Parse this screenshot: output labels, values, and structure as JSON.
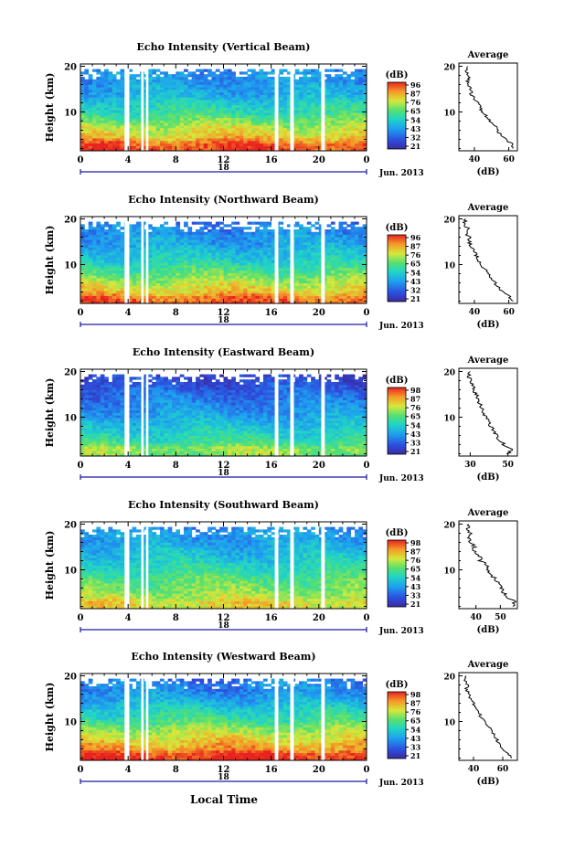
{
  "figure": {
    "xlabel": "Local Time",
    "date_label": "Jun. 2013"
  },
  "chart_data": [
    {
      "type": "heatmap",
      "title": "Echo Intensity (Vertical Beam)",
      "ylabel": "Height (km)",
      "xlabel": "Local Time",
      "x_ticks": [
        "0",
        "4",
        "8",
        "12",
        "16",
        "20",
        "0"
      ],
      "y_ticks": [
        "10",
        "20"
      ],
      "xlim": [
        0,
        24
      ],
      "ylim": [
        1.5,
        20.5
      ],
      "day_label": "18",
      "date_label": "Jun. 2013",
      "colorbar": {
        "label": "(dB)",
        "ticks": [
          "96",
          "87",
          "76",
          "65",
          "54",
          "43",
          "32",
          "21"
        ]
      },
      "gaps_hours": [
        [
          3.7,
          4.1
        ],
        [
          5.1,
          5.3
        ],
        [
          5.5,
          5.7
        ],
        [
          16.3,
          16.6
        ],
        [
          17.6,
          17.9
        ],
        [
          20.2,
          20.5
        ]
      ],
      "average": {
        "title": "Average",
        "xlabel": "(dB)",
        "x_ticks": [
          40,
          60
        ],
        "xlim": [
          31,
          65
        ],
        "heights": [
          2,
          3,
          4,
          5,
          6,
          7,
          8,
          9,
          10,
          11,
          12,
          13,
          14,
          15,
          16,
          17,
          18,
          19,
          20
        ],
        "values": [
          63,
          62,
          58,
          55,
          53,
          52,
          49,
          47,
          44,
          44,
          42,
          40,
          38,
          38,
          37,
          36,
          37,
          35,
          36
        ]
      }
    },
    {
      "type": "heatmap",
      "title": "Echo Intensity (Northward Beam)",
      "ylabel": "Height (km)",
      "xlabel": "Local Time",
      "x_ticks": [
        "0",
        "4",
        "8",
        "12",
        "16",
        "20",
        "0"
      ],
      "y_ticks": [
        "10",
        "20"
      ],
      "xlim": [
        0,
        24
      ],
      "ylim": [
        1.5,
        20.5
      ],
      "day_label": "18",
      "date_label": "Jun. 2013",
      "colorbar": {
        "label": "(dB)",
        "ticks": [
          "96",
          "87",
          "76",
          "65",
          "54",
          "43",
          "32",
          "21"
        ]
      },
      "gaps_hours": [
        [
          3.7,
          4.1
        ],
        [
          5.1,
          5.3
        ],
        [
          5.5,
          5.7
        ],
        [
          16.3,
          16.6
        ],
        [
          17.6,
          17.9
        ],
        [
          20.2,
          20.5
        ]
      ],
      "average": {
        "title": "Average",
        "xlabel": "(dB)",
        "x_ticks": [
          40,
          60
        ],
        "xlim": [
          31,
          65
        ],
        "heights": [
          2,
          3,
          4,
          5,
          6,
          7,
          8,
          9,
          10,
          11,
          12,
          13,
          14,
          15,
          16,
          17,
          18,
          19,
          20
        ],
        "values": [
          62,
          60,
          56,
          54,
          52,
          50,
          48,
          46,
          44,
          42,
          41,
          40,
          38,
          37,
          37,
          35,
          36,
          34,
          35
        ]
      }
    },
    {
      "type": "heatmap",
      "title": "Echo Intensity (Eastward Beam)",
      "ylabel": "Height (km)",
      "xlabel": "Local Time",
      "x_ticks": [
        "0",
        "4",
        "8",
        "12",
        "16",
        "20",
        "0"
      ],
      "y_ticks": [
        "10",
        "20"
      ],
      "xlim": [
        0,
        24
      ],
      "ylim": [
        1.5,
        20.5
      ],
      "day_label": "18",
      "date_label": "Jun. 2013",
      "colorbar": {
        "label": "(dB)",
        "ticks": [
          "98",
          "87",
          "76",
          "65",
          "54",
          "43",
          "33",
          "21"
        ]
      },
      "gaps_hours": [
        [
          3.7,
          4.1
        ],
        [
          5.1,
          5.3
        ],
        [
          5.5,
          5.7
        ],
        [
          16.3,
          16.6
        ],
        [
          17.6,
          17.9
        ],
        [
          20.2,
          20.5
        ]
      ],
      "average": {
        "title": "Average",
        "xlabel": "(dB)",
        "x_ticks": [
          30,
          50
        ],
        "xlim": [
          24,
          55
        ],
        "heights": [
          2,
          3,
          4,
          5,
          6,
          7,
          8,
          9,
          10,
          11,
          12,
          13,
          14,
          15,
          16,
          17,
          18,
          19,
          20
        ],
        "values": [
          50,
          52,
          48,
          45,
          44,
          43,
          41,
          40,
          38,
          37,
          36,
          35,
          34,
          33,
          32,
          31,
          30,
          29,
          30
        ]
      }
    },
    {
      "type": "heatmap",
      "title": "Echo Intensity (Southward Beam)",
      "ylabel": "Height (km)",
      "xlabel": "Local Time",
      "x_ticks": [
        "0",
        "4",
        "8",
        "12",
        "16",
        "20",
        "0"
      ],
      "y_ticks": [
        "10",
        "20"
      ],
      "xlim": [
        0,
        24
      ],
      "ylim": [
        1.5,
        20.5
      ],
      "day_label": "18",
      "date_label": "Jun. 2013",
      "colorbar": {
        "label": "(dB)",
        "ticks": [
          "98",
          "87",
          "76",
          "65",
          "54",
          "43",
          "33",
          "21"
        ]
      },
      "gaps_hours": [
        [
          3.7,
          4.1
        ],
        [
          5.1,
          5.3
        ],
        [
          5.5,
          5.7
        ],
        [
          16.3,
          16.6
        ],
        [
          17.6,
          17.9
        ],
        [
          20.2,
          20.5
        ]
      ],
      "average": {
        "title": "Average",
        "xlabel": "(dB)",
        "x_ticks": [
          40,
          50
        ],
        "xlim": [
          33,
          57
        ],
        "heights": [
          2,
          3,
          4,
          5,
          6,
          7,
          8,
          9,
          10,
          11,
          12,
          13,
          14,
          15,
          16,
          17,
          18,
          19,
          20
        ],
        "values": [
          55,
          56,
          53,
          51,
          50,
          49,
          48,
          46,
          45,
          44,
          42,
          41,
          40,
          39,
          38,
          37,
          38,
          36,
          37
        ]
      }
    },
    {
      "type": "heatmap",
      "title": "Echo Intensity (Westward Beam)",
      "ylabel": "Height (km)",
      "xlabel": "Local Time",
      "x_ticks": [
        "0",
        "4",
        "8",
        "12",
        "16",
        "20",
        "0"
      ],
      "y_ticks": [
        "10",
        "20"
      ],
      "xlim": [
        0,
        24
      ],
      "ylim": [
        1.5,
        20.5
      ],
      "day_label": "18",
      "date_label": "Jun. 2013",
      "colorbar": {
        "label": "(dB)",
        "ticks": [
          "98",
          "87",
          "76",
          "65",
          "54",
          "43",
          "33",
          "21"
        ]
      },
      "gaps_hours": [
        [
          3.7,
          4.1
        ],
        [
          5.1,
          5.3
        ],
        [
          5.5,
          5.7
        ],
        [
          16.3,
          16.6
        ],
        [
          17.6,
          17.9
        ],
        [
          20.2,
          20.5
        ]
      ],
      "average": {
        "title": "Average",
        "xlabel": "(dB)",
        "x_ticks": [
          40,
          60
        ],
        "xlim": [
          30,
          70
        ],
        "heights": [
          2,
          3,
          4,
          5,
          6,
          7,
          8,
          9,
          10,
          11,
          12,
          13,
          14,
          15,
          16,
          17,
          18,
          19,
          20
        ],
        "values": [
          66,
          64,
          60,
          58,
          56,
          54,
          52,
          50,
          47,
          45,
          44,
          42,
          40,
          38,
          37,
          35,
          36,
          34,
          35
        ]
      }
    }
  ]
}
